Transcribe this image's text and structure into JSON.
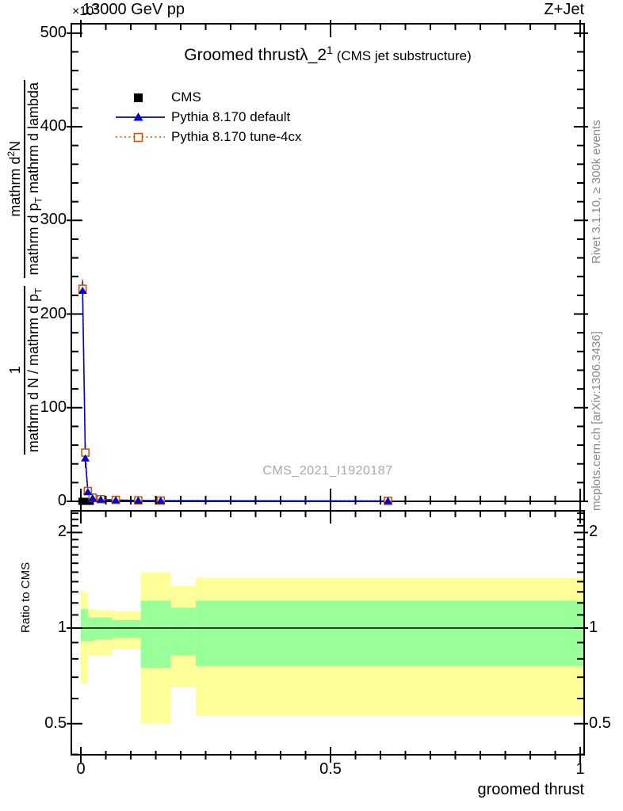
{
  "header": {
    "multiplier": [
      {
        "t": "×10"
      },
      {
        "t": "3",
        "sup": true
      }
    ],
    "beam": "13000 GeV pp",
    "process": "Z+Jet"
  },
  "title_segments": [
    {
      "t": "Groomed thrust"
    },
    {
      "t": "λ_2"
    },
    {
      "t": "1",
      "sup": true
    },
    {
      "t": " (CMS jet substructure)",
      "small": true
    }
  ],
  "legend": [
    {
      "label": "CMS",
      "marker": "cms-black-square"
    },
    {
      "label": "Pythia 8.170 default",
      "marker": "blue-line-triangle"
    },
    {
      "label": "Pythia 8.170 tune-4cx",
      "marker": "orange-dotted-open-square"
    }
  ],
  "watermark": "CMS_2021_I1920187",
  "side_notes": {
    "rivet": "Rivet 3.1.10, ≥ 300k events",
    "mcplots": "mcplots.cern.ch [arXiv:1306.3436]"
  },
  "axis_labels": {
    "x": "groomed thrust",
    "ratio_y": "Ratio to CMS",
    "y_frac1_num": [
      {
        "t": "1"
      }
    ],
    "y_frac1_den": [
      {
        "t": "mathrm d N / mathrm d p"
      },
      {
        "t": "T",
        "sub": true
      }
    ],
    "y_frac2_num": [
      {
        "t": "mathrm d"
      },
      {
        "t": "2",
        "sup": true
      },
      {
        "t": "N"
      }
    ],
    "y_frac2_den": [
      {
        "t": "mathrm d p"
      },
      {
        "t": "T",
        "sub": true
      },
      {
        "t": " mathrm d lambda"
      }
    ]
  },
  "colors": {
    "cms": "#000000",
    "pythia_default": "#0000cc",
    "pythia_4cx": "#cc5500",
    "band_yellow": "#ffff99",
    "band_green": "#99ff99",
    "gray_text": "#888888",
    "watermark_gray": "#aaaaaa"
  },
  "chart_data": {
    "type": "line",
    "title": "Groomed thrust λ_2^1 (CMS jet substructure)",
    "xlabel": "groomed thrust",
    "ylabel": "1/(dN/dp_T) d²N/(dp_T dλ)",
    "y_axis_multiplier": "×10³",
    "xlim": [
      -0.019,
      1.008
    ],
    "main_ylim": [
      0,
      510
    ],
    "x_ticks": [
      {
        "v": 0,
        "label": "0"
      },
      {
        "v": 0.5,
        "label": "0.5"
      },
      {
        "v": 1,
        "label": "1"
      }
    ],
    "x_minor_step": 0.05,
    "y_ticks": [
      {
        "v": 0,
        "label": "0"
      },
      {
        "v": 100,
        "label": "100"
      },
      {
        "v": 200,
        "label": "200"
      },
      {
        "v": 300,
        "label": "300"
      },
      {
        "v": 400,
        "label": "400"
      },
      {
        "v": 500,
        "label": "500"
      }
    ],
    "y_minor_step": 20,
    "series": [
      {
        "name": "CMS",
        "color": "#000000",
        "style": "filled-square-band",
        "band_x": [
          -0.005,
          0.026
        ],
        "band_y": 0
      },
      {
        "name": "Pythia 8.170 default",
        "color": "#0000cc",
        "style": "solid-line-filled-triangle",
        "x": [
          0.0035,
          0.009,
          0.014,
          0.0235,
          0.04,
          0.07,
          0.115,
          0.16,
          0.615
        ],
        "y": [
          225,
          46,
          10,
          3.5,
          2,
          1.3,
          0.9,
          0.7,
          0.4
        ]
      },
      {
        "name": "Pythia 8.170 tune-4cx",
        "color": "#cc5500",
        "style": "dotted-line-open-square",
        "x": [
          0.0035,
          0.009,
          0.014,
          0.0235,
          0.04,
          0.07,
          0.115,
          0.16,
          0.615
        ],
        "y": [
          227,
          52,
          11,
          4,
          2.3,
          1.5,
          1.0,
          0.8,
          0.5
        ]
      }
    ],
    "ratio": {
      "label": "Ratio to CMS",
      "scale": "log",
      "ylim": [
        0.399,
        2.34
      ],
      "ticks": [
        {
          "v": 0.5,
          "label": "0.5"
        },
        {
          "v": 1,
          "label": "1"
        },
        {
          "v": 2,
          "label": "2"
        }
      ],
      "minor_ticks": [
        0.4,
        0.6,
        0.7,
        0.8,
        0.9,
        1.1,
        1.2,
        1.3,
        1.4,
        1.5,
        1.6,
        1.7,
        1.8,
        1.9,
        2.1,
        2.2,
        2.3
      ],
      "reference_line": 1,
      "segments": [
        {
          "x0": 0.0,
          "x1": 0.014,
          "yellow": [
            0.67,
            1.3
          ],
          "green": [
            0.91,
            1.15
          ]
        },
        {
          "x0": 0.014,
          "x1": 0.028,
          "yellow": [
            0.82,
            1.15
          ],
          "green": [
            0.91,
            1.08
          ]
        },
        {
          "x0": 0.028,
          "x1": 0.063,
          "yellow": [
            0.82,
            1.14
          ],
          "green": [
            0.92,
            1.08
          ]
        },
        {
          "x0": 0.063,
          "x1": 0.12,
          "yellow": [
            0.86,
            1.13
          ],
          "green": [
            0.93,
            1.06
          ]
        },
        {
          "x0": 0.12,
          "x1": 0.18,
          "yellow": [
            0.5,
            1.5
          ],
          "green": [
            0.75,
            1.22
          ]
        },
        {
          "x0": 0.18,
          "x1": 0.23,
          "yellow": [
            0.65,
            1.36
          ],
          "green": [
            0.82,
            1.16
          ]
        },
        {
          "x0": 0.23,
          "x1": 1.008,
          "yellow": [
            0.53,
            1.44
          ],
          "green": [
            0.76,
            1.22
          ]
        }
      ]
    }
  }
}
